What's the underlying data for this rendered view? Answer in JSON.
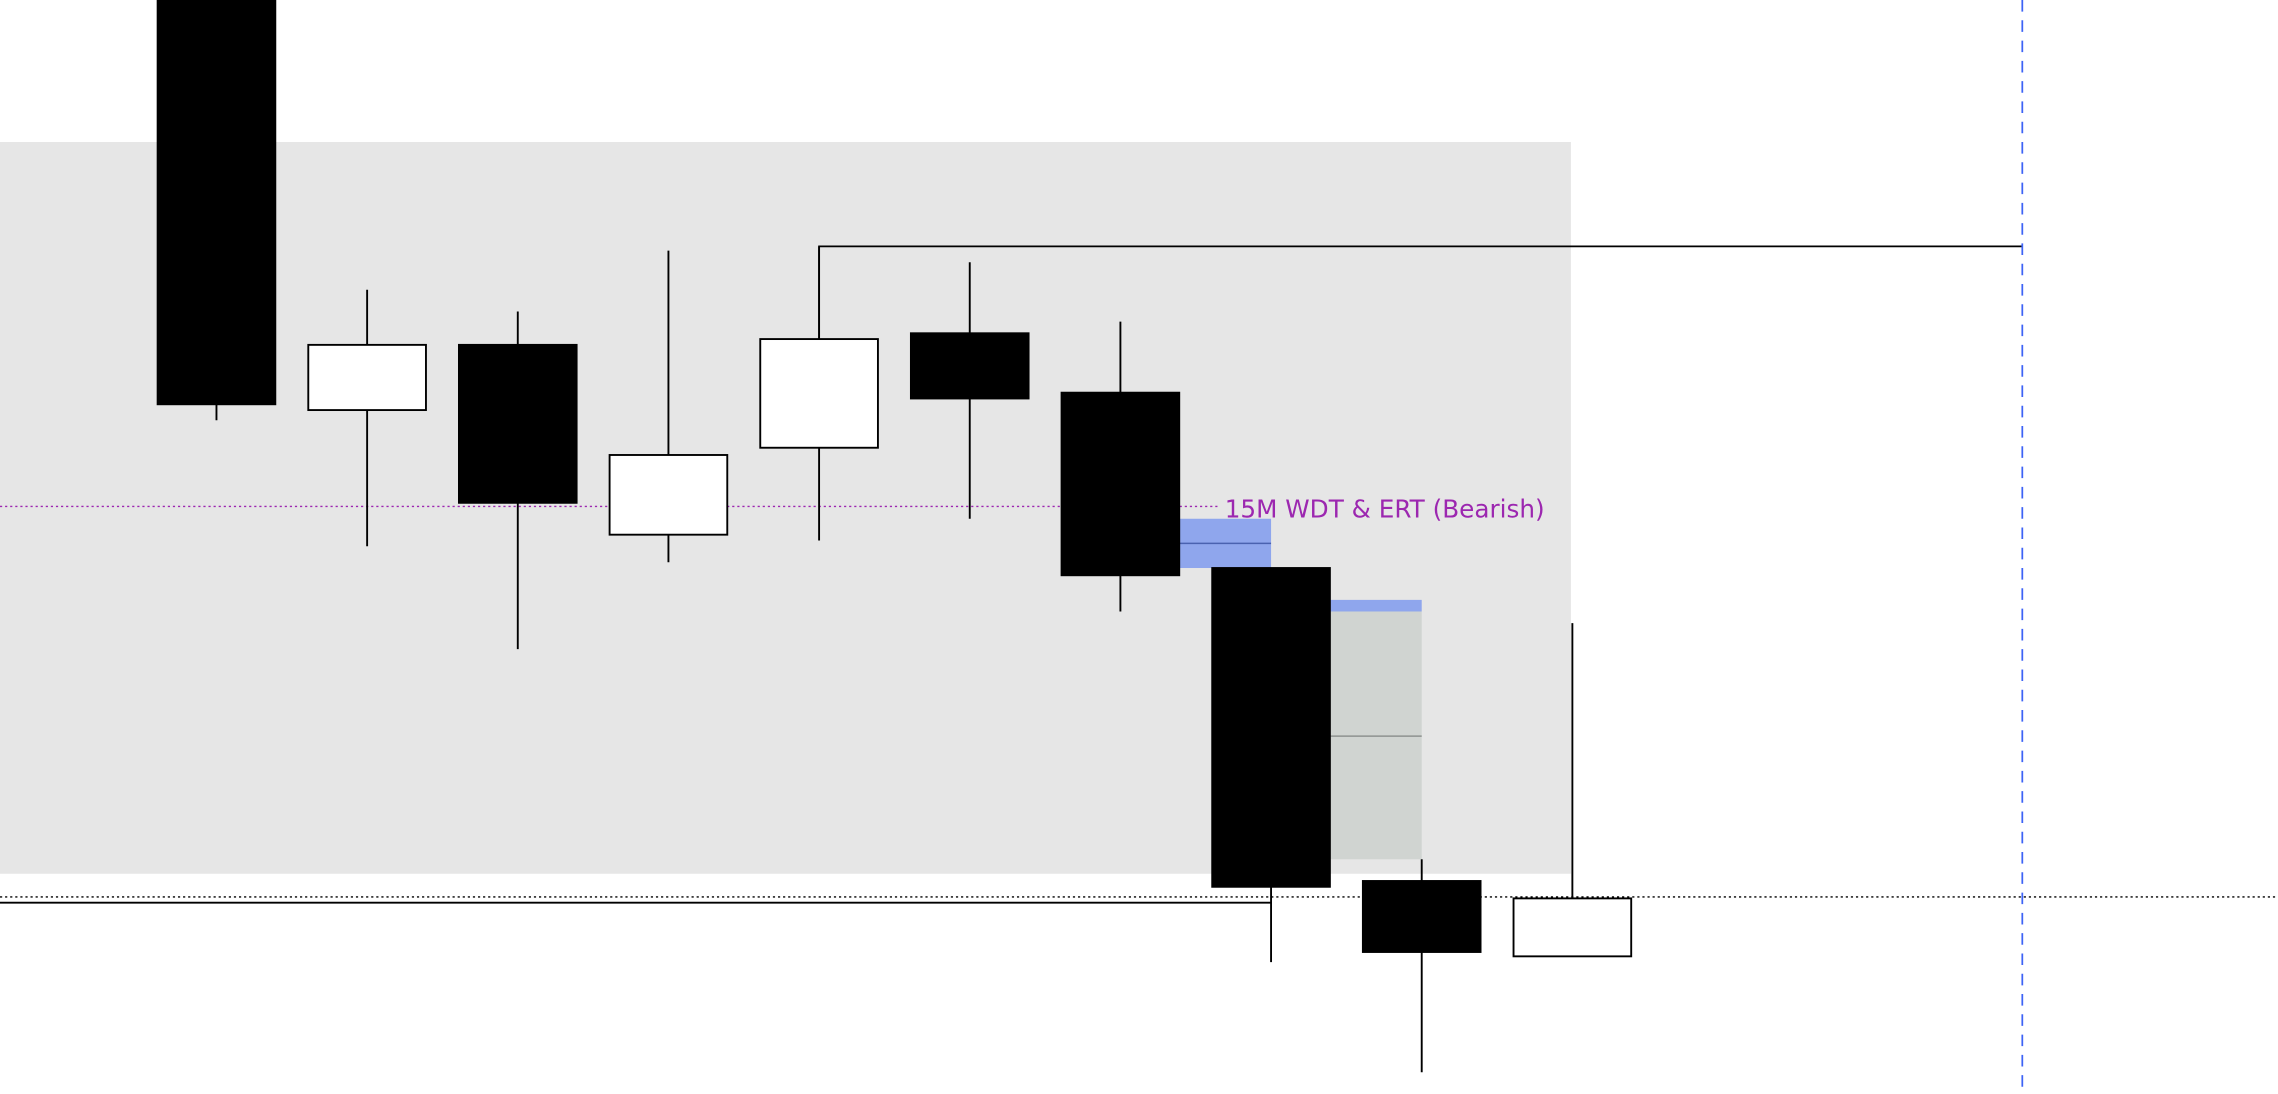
{
  "chart_data": {
    "type": "candlestick",
    "title": "",
    "xlabel": "",
    "ylabel": "",
    "grid": false,
    "price_units": "relative (no price axis shown)",
    "candles": [
      {
        "open": 755,
        "high": 800,
        "low": 465,
        "close": 476
      },
      {
        "open": 472,
        "high": 555,
        "low": 378,
        "close": 517
      },
      {
        "open": 517,
        "high": 540,
        "low": 307,
        "close": 408
      },
      {
        "open": 386,
        "high": 582,
        "low": 367,
        "close": 441
      },
      {
        "open": 446,
        "high": 585,
        "low": 382,
        "close": 521
      },
      {
        "open": 525,
        "high": 574,
        "low": 397,
        "close": 480
      },
      {
        "open": 484,
        "high": 533,
        "low": 333,
        "close": 358
      },
      {
        "open": 363,
        "high": 363,
        "low": 91,
        "close": 143
      },
      {
        "open": 147,
        "high": 162,
        "low": 15,
        "close": 98
      },
      {
        "open": 95,
        "high": 325,
        "low": 95,
        "close": 135
      }
    ],
    "annotations": {
      "range_zone": {
        "top": 657,
        "bottom": 152,
        "to_candle": 9,
        "color": "#e6e6e6"
      },
      "high_level": {
        "price": 585,
        "from_candle": 4,
        "color": "#000000"
      },
      "label_level": {
        "price": 405,
        "text": "15M WDT & ERT (Bearish)",
        "color": "#9c27b0"
      },
      "fvg_1": {
        "top": 397,
        "bottom": 363,
        "mid": 380,
        "color": "#8fa6ed"
      },
      "fvg_2": {
        "top": 333,
        "bottom": 162,
        "mid": 247,
        "color": "#d0d4d1",
        "cap_color": "#8fa6ed"
      },
      "dotted_level": {
        "price": 136,
        "color": "#000000"
      },
      "solid_level": {
        "price": 132,
        "color": "#000000"
      },
      "time_marker_color": "#3d63f5"
    },
    "colors": {
      "bearish": "#000000",
      "bullish": "#ffffff",
      "outline": "#000000"
    }
  }
}
